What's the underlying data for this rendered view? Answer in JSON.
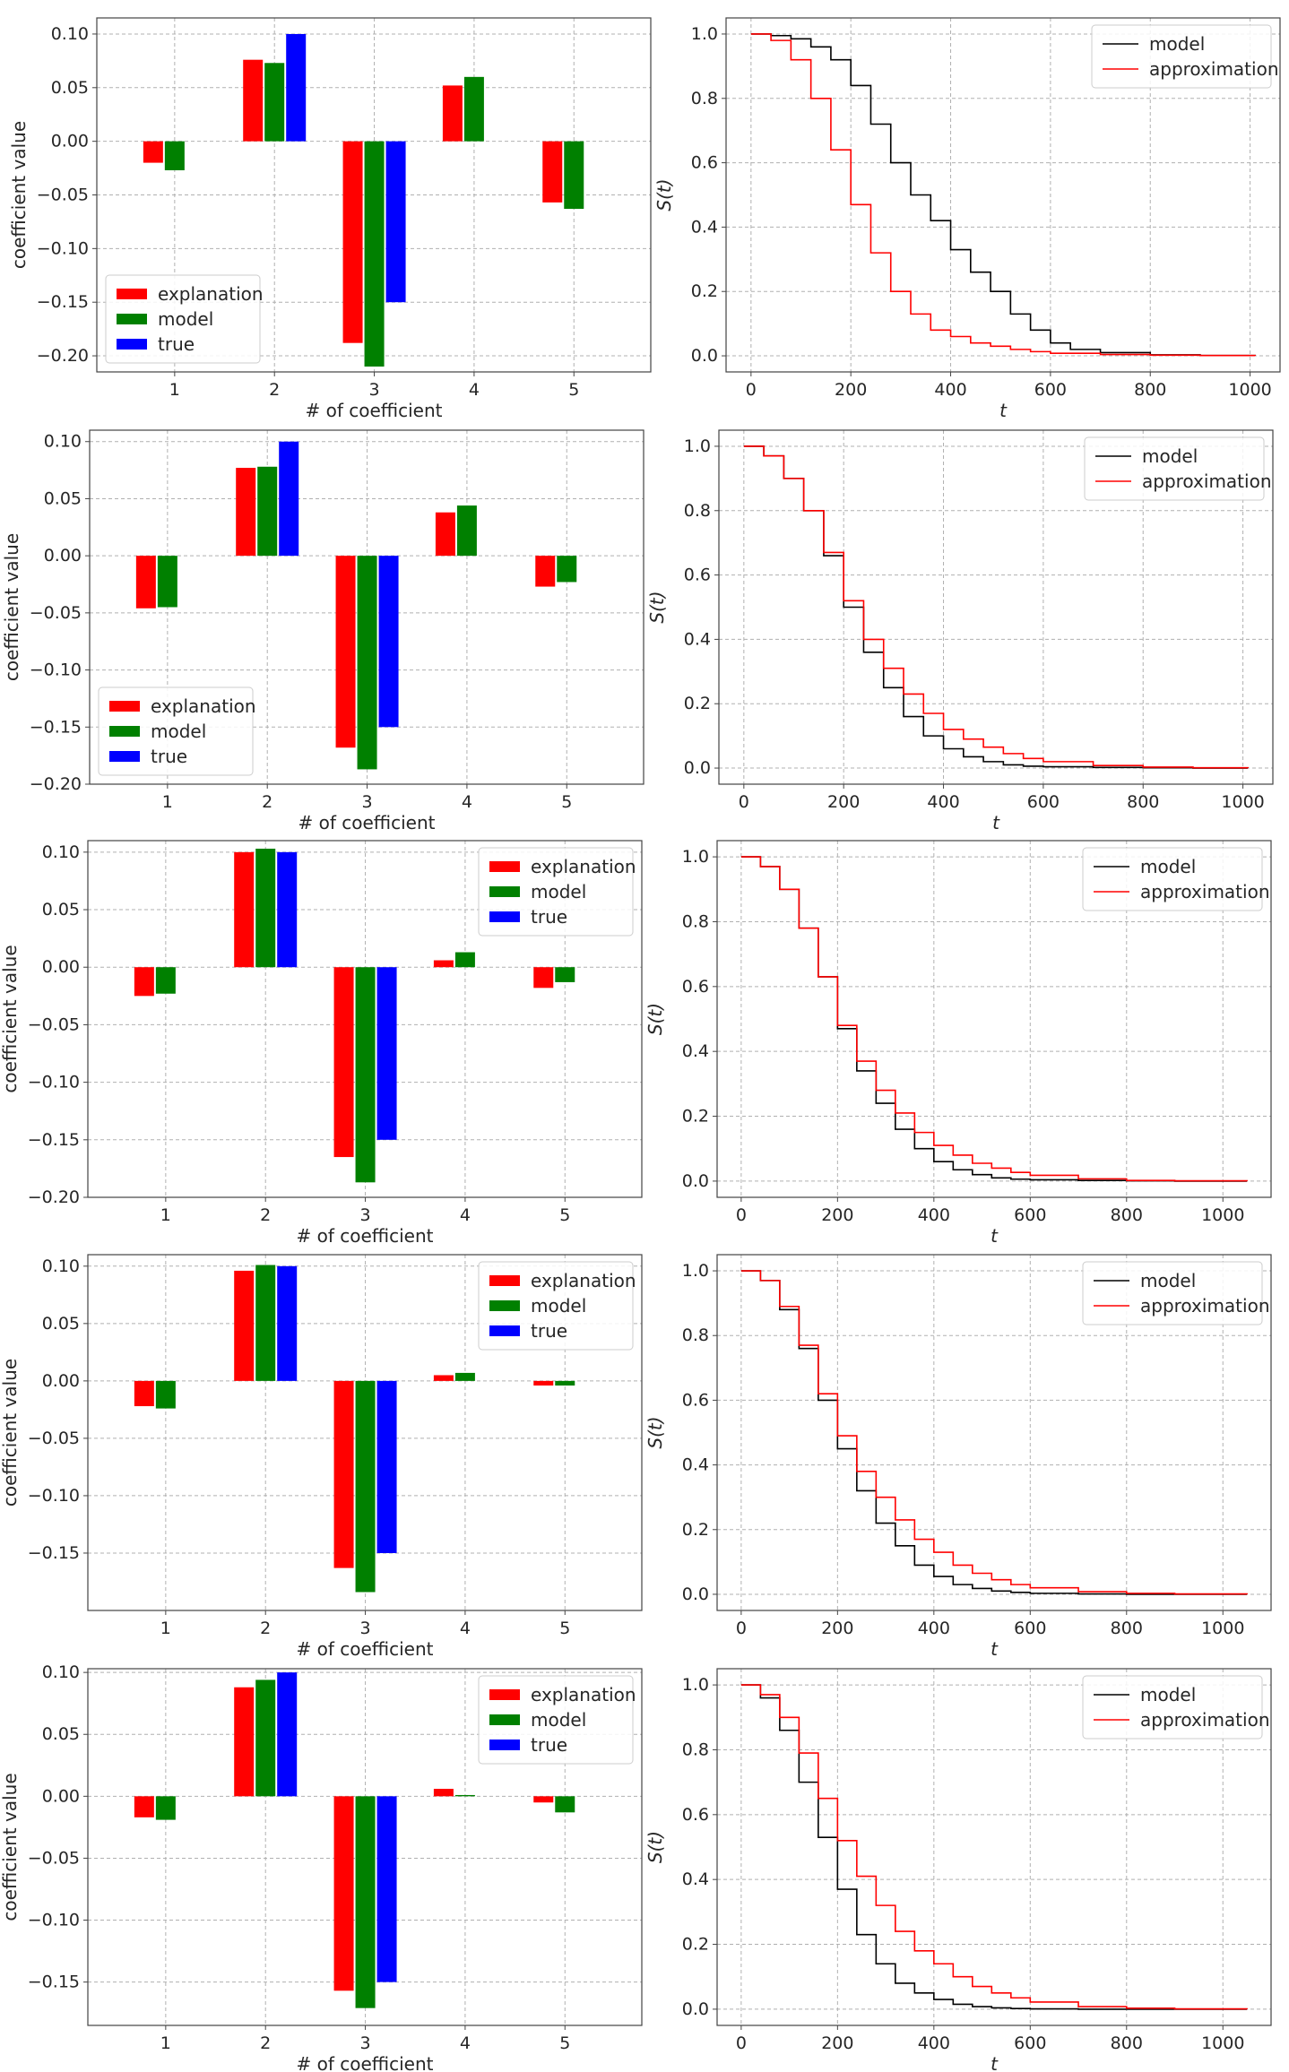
{
  "figure": {
    "colors": {
      "explanation": "#ff0000",
      "model_bar": "#008000",
      "true": "#0000ff",
      "model_line": "#000000",
      "approximation": "#ff0000",
      "grid": "#b0b0b0"
    }
  },
  "chart_data": [
    {
      "type": "bar",
      "xlabel": "# of coefficient",
      "ylabel": "coefficient value",
      "categories": [
        "1",
        "2",
        "3",
        "4",
        "5"
      ],
      "yticks": [
        "0.10",
        "0.05",
        "0.00",
        "−0.05",
        "−0.10",
        "−0.15",
        "−0.20"
      ],
      "ytick_values": [
        0.1,
        0.05,
        0.0,
        -0.05,
        -0.1,
        -0.15,
        -0.2
      ],
      "ylim": [
        -0.215,
        0.115
      ],
      "legend_position": "lower-left",
      "series": [
        {
          "name": "explanation",
          "values": [
            -0.02,
            0.076,
            -0.188,
            0.052,
            -0.057
          ]
        },
        {
          "name": "model",
          "values": [
            -0.027,
            0.073,
            -0.21,
            0.06,
            -0.063
          ]
        },
        {
          "name": "true",
          "values": [
            null,
            0.1,
            -0.15,
            null,
            null
          ]
        }
      ]
    },
    {
      "type": "line",
      "xlabel": "t",
      "ylabel": "S(t)",
      "xticks": [
        "0",
        "200",
        "400",
        "600",
        "800",
        "1000"
      ],
      "xtick_values": [
        0,
        200,
        400,
        600,
        800,
        1000
      ],
      "yticks": [
        "1.0",
        "0.8",
        "0.6",
        "0.4",
        "0.2",
        "0.0"
      ],
      "ytick_values": [
        1.0,
        0.8,
        0.6,
        0.4,
        0.2,
        0.0
      ],
      "xlim": [
        -50,
        1060
      ],
      "ylim": [
        -0.05,
        1.05
      ],
      "legend_position": "top-right",
      "series": [
        {
          "name": "model",
          "x": [
            0,
            40,
            80,
            120,
            160,
            200,
            240,
            280,
            320,
            360,
            400,
            440,
            480,
            520,
            560,
            600,
            640,
            700,
            800,
            900,
            1010
          ],
          "y": [
            1.0,
            0.995,
            0.985,
            0.96,
            0.92,
            0.84,
            0.72,
            0.6,
            0.5,
            0.42,
            0.33,
            0.26,
            0.2,
            0.13,
            0.08,
            0.04,
            0.02,
            0.01,
            0.003,
            0.001,
            0.0
          ]
        },
        {
          "name": "approximation",
          "x": [
            0,
            40,
            80,
            120,
            160,
            200,
            240,
            280,
            320,
            360,
            400,
            440,
            480,
            520,
            560,
            600,
            700,
            800,
            900,
            1010
          ],
          "y": [
            1.0,
            0.98,
            0.92,
            0.8,
            0.64,
            0.47,
            0.32,
            0.2,
            0.13,
            0.08,
            0.06,
            0.04,
            0.03,
            0.02,
            0.013,
            0.008,
            0.004,
            0.002,
            0.001,
            0.0
          ]
        }
      ]
    },
    {
      "type": "bar",
      "xlabel": "# of coefficient",
      "ylabel": "coefficient value",
      "categories": [
        "1",
        "2",
        "3",
        "4",
        "5"
      ],
      "yticks": [
        "0.10",
        "0.05",
        "0.00",
        "−0.05",
        "−0.10",
        "−0.15",
        "−0.20"
      ],
      "ytick_values": [
        0.1,
        0.05,
        0.0,
        -0.05,
        -0.1,
        -0.15,
        -0.2
      ],
      "ylim": [
        -0.2,
        0.11
      ],
      "legend_position": "lower-left",
      "series": [
        {
          "name": "explanation",
          "values": [
            -0.046,
            0.077,
            -0.168,
            0.038,
            -0.027
          ]
        },
        {
          "name": "model",
          "values": [
            -0.045,
            0.078,
            -0.187,
            0.044,
            -0.023
          ]
        },
        {
          "name": "true",
          "values": [
            null,
            0.1,
            -0.15,
            null,
            null
          ]
        }
      ]
    },
    {
      "type": "line",
      "xlabel": "t",
      "ylabel": "S(t)",
      "xticks": [
        "0",
        "200",
        "400",
        "600",
        "800",
        "1000"
      ],
      "xtick_values": [
        0,
        200,
        400,
        600,
        800,
        1000
      ],
      "yticks": [
        "1.0",
        "0.8",
        "0.6",
        "0.4",
        "0.2",
        "0.0"
      ],
      "ytick_values": [
        1.0,
        0.8,
        0.6,
        0.4,
        0.2,
        0.0
      ],
      "xlim": [
        -50,
        1060
      ],
      "ylim": [
        -0.05,
        1.05
      ],
      "legend_position": "top-right",
      "series": [
        {
          "name": "model",
          "x": [
            0,
            40,
            80,
            120,
            160,
            200,
            240,
            280,
            320,
            360,
            400,
            440,
            480,
            520,
            560,
            600,
            700,
            800,
            900,
            1010
          ],
          "y": [
            1.0,
            0.97,
            0.9,
            0.8,
            0.66,
            0.5,
            0.36,
            0.25,
            0.16,
            0.1,
            0.06,
            0.035,
            0.02,
            0.01,
            0.006,
            0.004,
            0.002,
            0.001,
            0.0,
            0.0
          ]
        },
        {
          "name": "approximation",
          "x": [
            0,
            40,
            80,
            120,
            160,
            200,
            240,
            280,
            320,
            360,
            400,
            440,
            480,
            520,
            560,
            600,
            700,
            800,
            900,
            1010
          ],
          "y": [
            1.0,
            0.97,
            0.9,
            0.8,
            0.67,
            0.52,
            0.4,
            0.31,
            0.23,
            0.17,
            0.12,
            0.09,
            0.065,
            0.045,
            0.03,
            0.02,
            0.008,
            0.003,
            0.001,
            0.0
          ]
        }
      ]
    },
    {
      "type": "bar",
      "xlabel": "# of coefficient",
      "ylabel": "coefficient value",
      "categories": [
        "1",
        "2",
        "3",
        "4",
        "5"
      ],
      "yticks": [
        "0.10",
        "0.05",
        "0.00",
        "−0.05",
        "−0.10",
        "−0.15",
        "−0.20"
      ],
      "ytick_values": [
        0.1,
        0.05,
        0.0,
        -0.05,
        -0.1,
        -0.15,
        -0.2
      ],
      "ylim": [
        -0.2,
        0.11
      ],
      "legend_position": "top-right",
      "series": [
        {
          "name": "explanation",
          "values": [
            -0.025,
            0.1,
            -0.165,
            0.006,
            -0.018
          ]
        },
        {
          "name": "model",
          "values": [
            -0.023,
            0.103,
            -0.187,
            0.013,
            -0.013
          ]
        },
        {
          "name": "true",
          "values": [
            null,
            0.1,
            -0.15,
            null,
            null
          ]
        }
      ]
    },
    {
      "type": "line",
      "xlabel": "t",
      "ylabel": "S(t)",
      "xticks": [
        "0",
        "200",
        "400",
        "600",
        "800",
        "1000"
      ],
      "xtick_values": [
        0,
        200,
        400,
        600,
        800,
        1000
      ],
      "yticks": [
        "1.0",
        "0.8",
        "0.6",
        "0.4",
        "0.2",
        "0.0"
      ],
      "ytick_values": [
        1.0,
        0.8,
        0.6,
        0.4,
        0.2,
        0.0
      ],
      "xlim": [
        -50,
        1100
      ],
      "ylim": [
        -0.05,
        1.05
      ],
      "legend_position": "top-right",
      "series": [
        {
          "name": "model",
          "x": [
            0,
            40,
            80,
            120,
            160,
            200,
            240,
            280,
            320,
            360,
            400,
            440,
            480,
            520,
            560,
            600,
            700,
            800,
            900,
            1050
          ],
          "y": [
            1.0,
            0.97,
            0.9,
            0.78,
            0.63,
            0.47,
            0.34,
            0.24,
            0.16,
            0.1,
            0.06,
            0.035,
            0.02,
            0.01,
            0.006,
            0.004,
            0.002,
            0.001,
            0.0,
            0.0
          ]
        },
        {
          "name": "approximation",
          "x": [
            0,
            40,
            80,
            120,
            160,
            200,
            240,
            280,
            320,
            360,
            400,
            440,
            480,
            520,
            560,
            600,
            700,
            800,
            900,
            1050
          ],
          "y": [
            1.0,
            0.97,
            0.9,
            0.78,
            0.63,
            0.48,
            0.37,
            0.28,
            0.21,
            0.15,
            0.11,
            0.08,
            0.055,
            0.04,
            0.027,
            0.018,
            0.007,
            0.002,
            0.001,
            0.0
          ]
        }
      ]
    },
    {
      "type": "bar",
      "xlabel": "# of coefficient",
      "ylabel": "coefficient value",
      "categories": [
        "1",
        "2",
        "3",
        "4",
        "5"
      ],
      "yticks": [
        "0.10",
        "0.05",
        "0.00",
        "−0.05",
        "−0.10",
        "−0.15"
      ],
      "ytick_values": [
        0.1,
        0.05,
        0.0,
        -0.05,
        -0.1,
        -0.15
      ],
      "ylim": [
        -0.2,
        0.11
      ],
      "legend_position": "top-right",
      "series": [
        {
          "name": "explanation",
          "values": [
            -0.022,
            0.096,
            -0.163,
            0.005,
            -0.004
          ]
        },
        {
          "name": "model",
          "values": [
            -0.024,
            0.101,
            -0.184,
            0.007,
            -0.004
          ]
        },
        {
          "name": "true",
          "values": [
            null,
            0.1,
            -0.15,
            null,
            null
          ]
        }
      ]
    },
    {
      "type": "line",
      "xlabel": "t",
      "ylabel": "S(t)",
      "xticks": [
        "0",
        "200",
        "400",
        "600",
        "800",
        "1000"
      ],
      "xtick_values": [
        0,
        200,
        400,
        600,
        800,
        1000
      ],
      "yticks": [
        "1.0",
        "0.8",
        "0.6",
        "0.4",
        "0.2",
        "0.0"
      ],
      "ytick_values": [
        1.0,
        0.8,
        0.6,
        0.4,
        0.2,
        0.0
      ],
      "xlim": [
        -50,
        1100
      ],
      "ylim": [
        -0.05,
        1.05
      ],
      "legend_position": "top-right",
      "series": [
        {
          "name": "model",
          "x": [
            0,
            40,
            80,
            120,
            160,
            200,
            240,
            280,
            320,
            360,
            400,
            440,
            480,
            520,
            560,
            600,
            700,
            800,
            900,
            1050
          ],
          "y": [
            1.0,
            0.97,
            0.88,
            0.76,
            0.6,
            0.45,
            0.32,
            0.22,
            0.15,
            0.09,
            0.055,
            0.03,
            0.018,
            0.01,
            0.006,
            0.003,
            0.001,
            0.0,
            0.0,
            0.0
          ]
        },
        {
          "name": "approximation",
          "x": [
            0,
            40,
            80,
            120,
            160,
            200,
            240,
            280,
            320,
            360,
            400,
            440,
            480,
            520,
            560,
            600,
            700,
            800,
            900,
            1050
          ],
          "y": [
            1.0,
            0.97,
            0.89,
            0.77,
            0.62,
            0.49,
            0.38,
            0.3,
            0.23,
            0.17,
            0.13,
            0.09,
            0.065,
            0.045,
            0.03,
            0.02,
            0.008,
            0.003,
            0.001,
            0.0
          ]
        }
      ]
    },
    {
      "type": "bar",
      "xlabel": "# of coefficient",
      "ylabel": "coefficient value",
      "categories": [
        "1",
        "2",
        "3",
        "4",
        "5"
      ],
      "yticks": [
        "0.10",
        "0.05",
        "0.00",
        "−0.05",
        "−0.10",
        "−0.15"
      ],
      "ytick_values": [
        0.1,
        0.05,
        0.0,
        -0.05,
        -0.1,
        -0.15
      ],
      "ylim": [
        -0.185,
        0.103
      ],
      "legend_position": "top-right",
      "series": [
        {
          "name": "explanation",
          "values": [
            -0.017,
            0.088,
            -0.157,
            0.006,
            -0.005
          ]
        },
        {
          "name": "model",
          "values": [
            -0.019,
            0.094,
            -0.171,
            0.001,
            -0.013
          ]
        },
        {
          "name": "true",
          "values": [
            null,
            0.1,
            -0.15,
            null,
            null
          ]
        }
      ]
    },
    {
      "type": "line",
      "xlabel": "t",
      "ylabel": "S(t)",
      "xticks": [
        "0",
        "200",
        "400",
        "600",
        "800",
        "1000"
      ],
      "xtick_values": [
        0,
        200,
        400,
        600,
        800,
        1000
      ],
      "yticks": [
        "1.0",
        "0.8",
        "0.6",
        "0.4",
        "0.2",
        "0.0"
      ],
      "ytick_values": [
        1.0,
        0.8,
        0.6,
        0.4,
        0.2,
        0.0
      ],
      "xlim": [
        -50,
        1100
      ],
      "ylim": [
        -0.05,
        1.05
      ],
      "legend_position": "top-right",
      "series": [
        {
          "name": "model",
          "x": [
            0,
            40,
            80,
            120,
            160,
            200,
            240,
            280,
            320,
            360,
            400,
            440,
            480,
            520,
            560,
            600,
            700,
            800,
            900,
            1050
          ],
          "y": [
            1.0,
            0.96,
            0.86,
            0.7,
            0.53,
            0.37,
            0.23,
            0.14,
            0.08,
            0.05,
            0.03,
            0.015,
            0.008,
            0.004,
            0.002,
            0.001,
            0.0,
            0.0,
            0.0,
            0.0
          ]
        },
        {
          "name": "approximation",
          "x": [
            0,
            40,
            80,
            120,
            160,
            200,
            240,
            280,
            320,
            360,
            400,
            440,
            480,
            520,
            560,
            600,
            700,
            800,
            900,
            1050
          ],
          "y": [
            1.0,
            0.97,
            0.9,
            0.79,
            0.65,
            0.52,
            0.41,
            0.32,
            0.24,
            0.18,
            0.14,
            0.1,
            0.07,
            0.05,
            0.035,
            0.022,
            0.008,
            0.003,
            0.001,
            0.0
          ]
        }
      ]
    }
  ]
}
